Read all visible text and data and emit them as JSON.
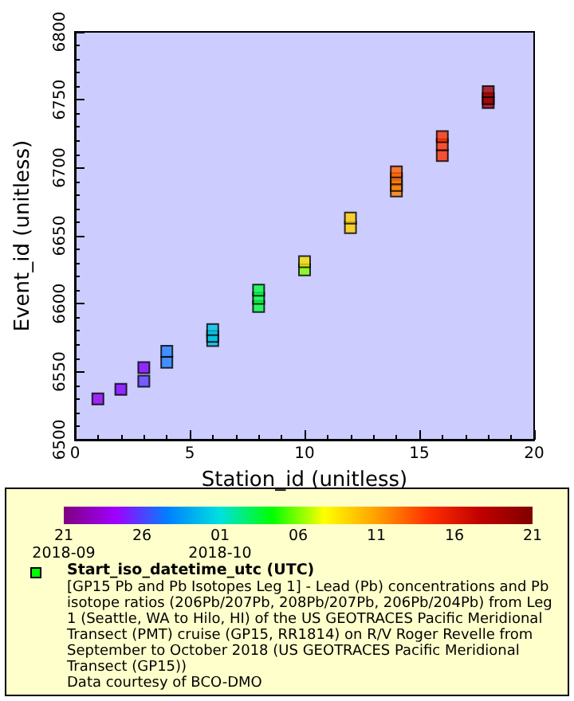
{
  "chart_data": {
    "type": "scatter",
    "xlabel": "Station_id (unitless)",
    "ylabel": "Event_id (unitless)",
    "clabel": "Start_iso_datetime_utc (UTC)",
    "annotations": [
      "[GP15 Pb and Pb Isotopes Leg 1] - Lead (Pb) concentrations and Pb isotope ratios (206Pb/207Pb, 208Pb/207Pb, 206Pb/204Pb) from Leg 1 (Seattle, WA to Hilo, HI) of the US GEOTRACES Pacific Meridional Transect (PMT) cruise (GP15, RR1814) on R/V Roger Revelle from September to October 2018 (US GEOTRACES Pacific Meridional Transect (GP15))",
      "Data courtesy of BCO-DMO"
    ],
    "x": [
      1,
      2,
      3,
      3,
      4,
      4,
      6,
      6,
      6,
      8,
      8,
      8,
      10,
      10,
      12,
      12,
      14,
      14,
      14,
      14,
      16,
      16,
      16,
      18,
      18,
      18
    ],
    "values": [
      6530,
      6537,
      6543,
      6553,
      6557,
      6565,
      6573,
      6576,
      6581,
      6598,
      6604,
      6610,
      6625,
      6631,
      6656,
      6663,
      6683,
      6687,
      6692,
      6697,
      6709,
      6717,
      6723,
      6748,
      6751,
      6756
    ],
    "colors": [
      "#9000f0",
      "#8000ff",
      "#6040ff",
      "#8000ff",
      "#2080ff",
      "#2080ff",
      "#00c0e0",
      "#00c0e0",
      "#00c0e0",
      "#00ff40",
      "#00ff40",
      "#00ff40",
      "#80ff00",
      "#f0e000",
      "#ffd000",
      "#ffd000",
      "#ff8000",
      "#ff8000",
      "#ff7000",
      "#ff6000",
      "#ff3000",
      "#ff3000",
      "#ff3000",
      "#a00000",
      "#a00000",
      "#a00000"
    ],
    "xlim": [
      0,
      20
    ],
    "xticks": [
      0,
      5,
      10,
      15,
      20
    ],
    "ylim": [
      6500,
      6800
    ],
    "yticks": [
      6500,
      6550,
      6600,
      6650,
      6700,
      6750,
      6800
    ],
    "clim": [
      "2018-09-21",
      "2018-10-21"
    ],
    "cticks": [
      {
        "value": "2018-09-21",
        "label": "21\n2018-09"
      },
      {
        "value": "2018-09-26",
        "label": "26"
      },
      {
        "value": "2018-10-01",
        "label": "01\n2018-10"
      },
      {
        "value": "2018-10-06",
        "label": "06"
      },
      {
        "value": "2018-10-11",
        "label": "11"
      },
      {
        "value": "2018-10-16",
        "label": "16"
      },
      {
        "value": "2018-10-21",
        "label": "21"
      }
    ],
    "marker": "square",
    "grid": false
  }
}
